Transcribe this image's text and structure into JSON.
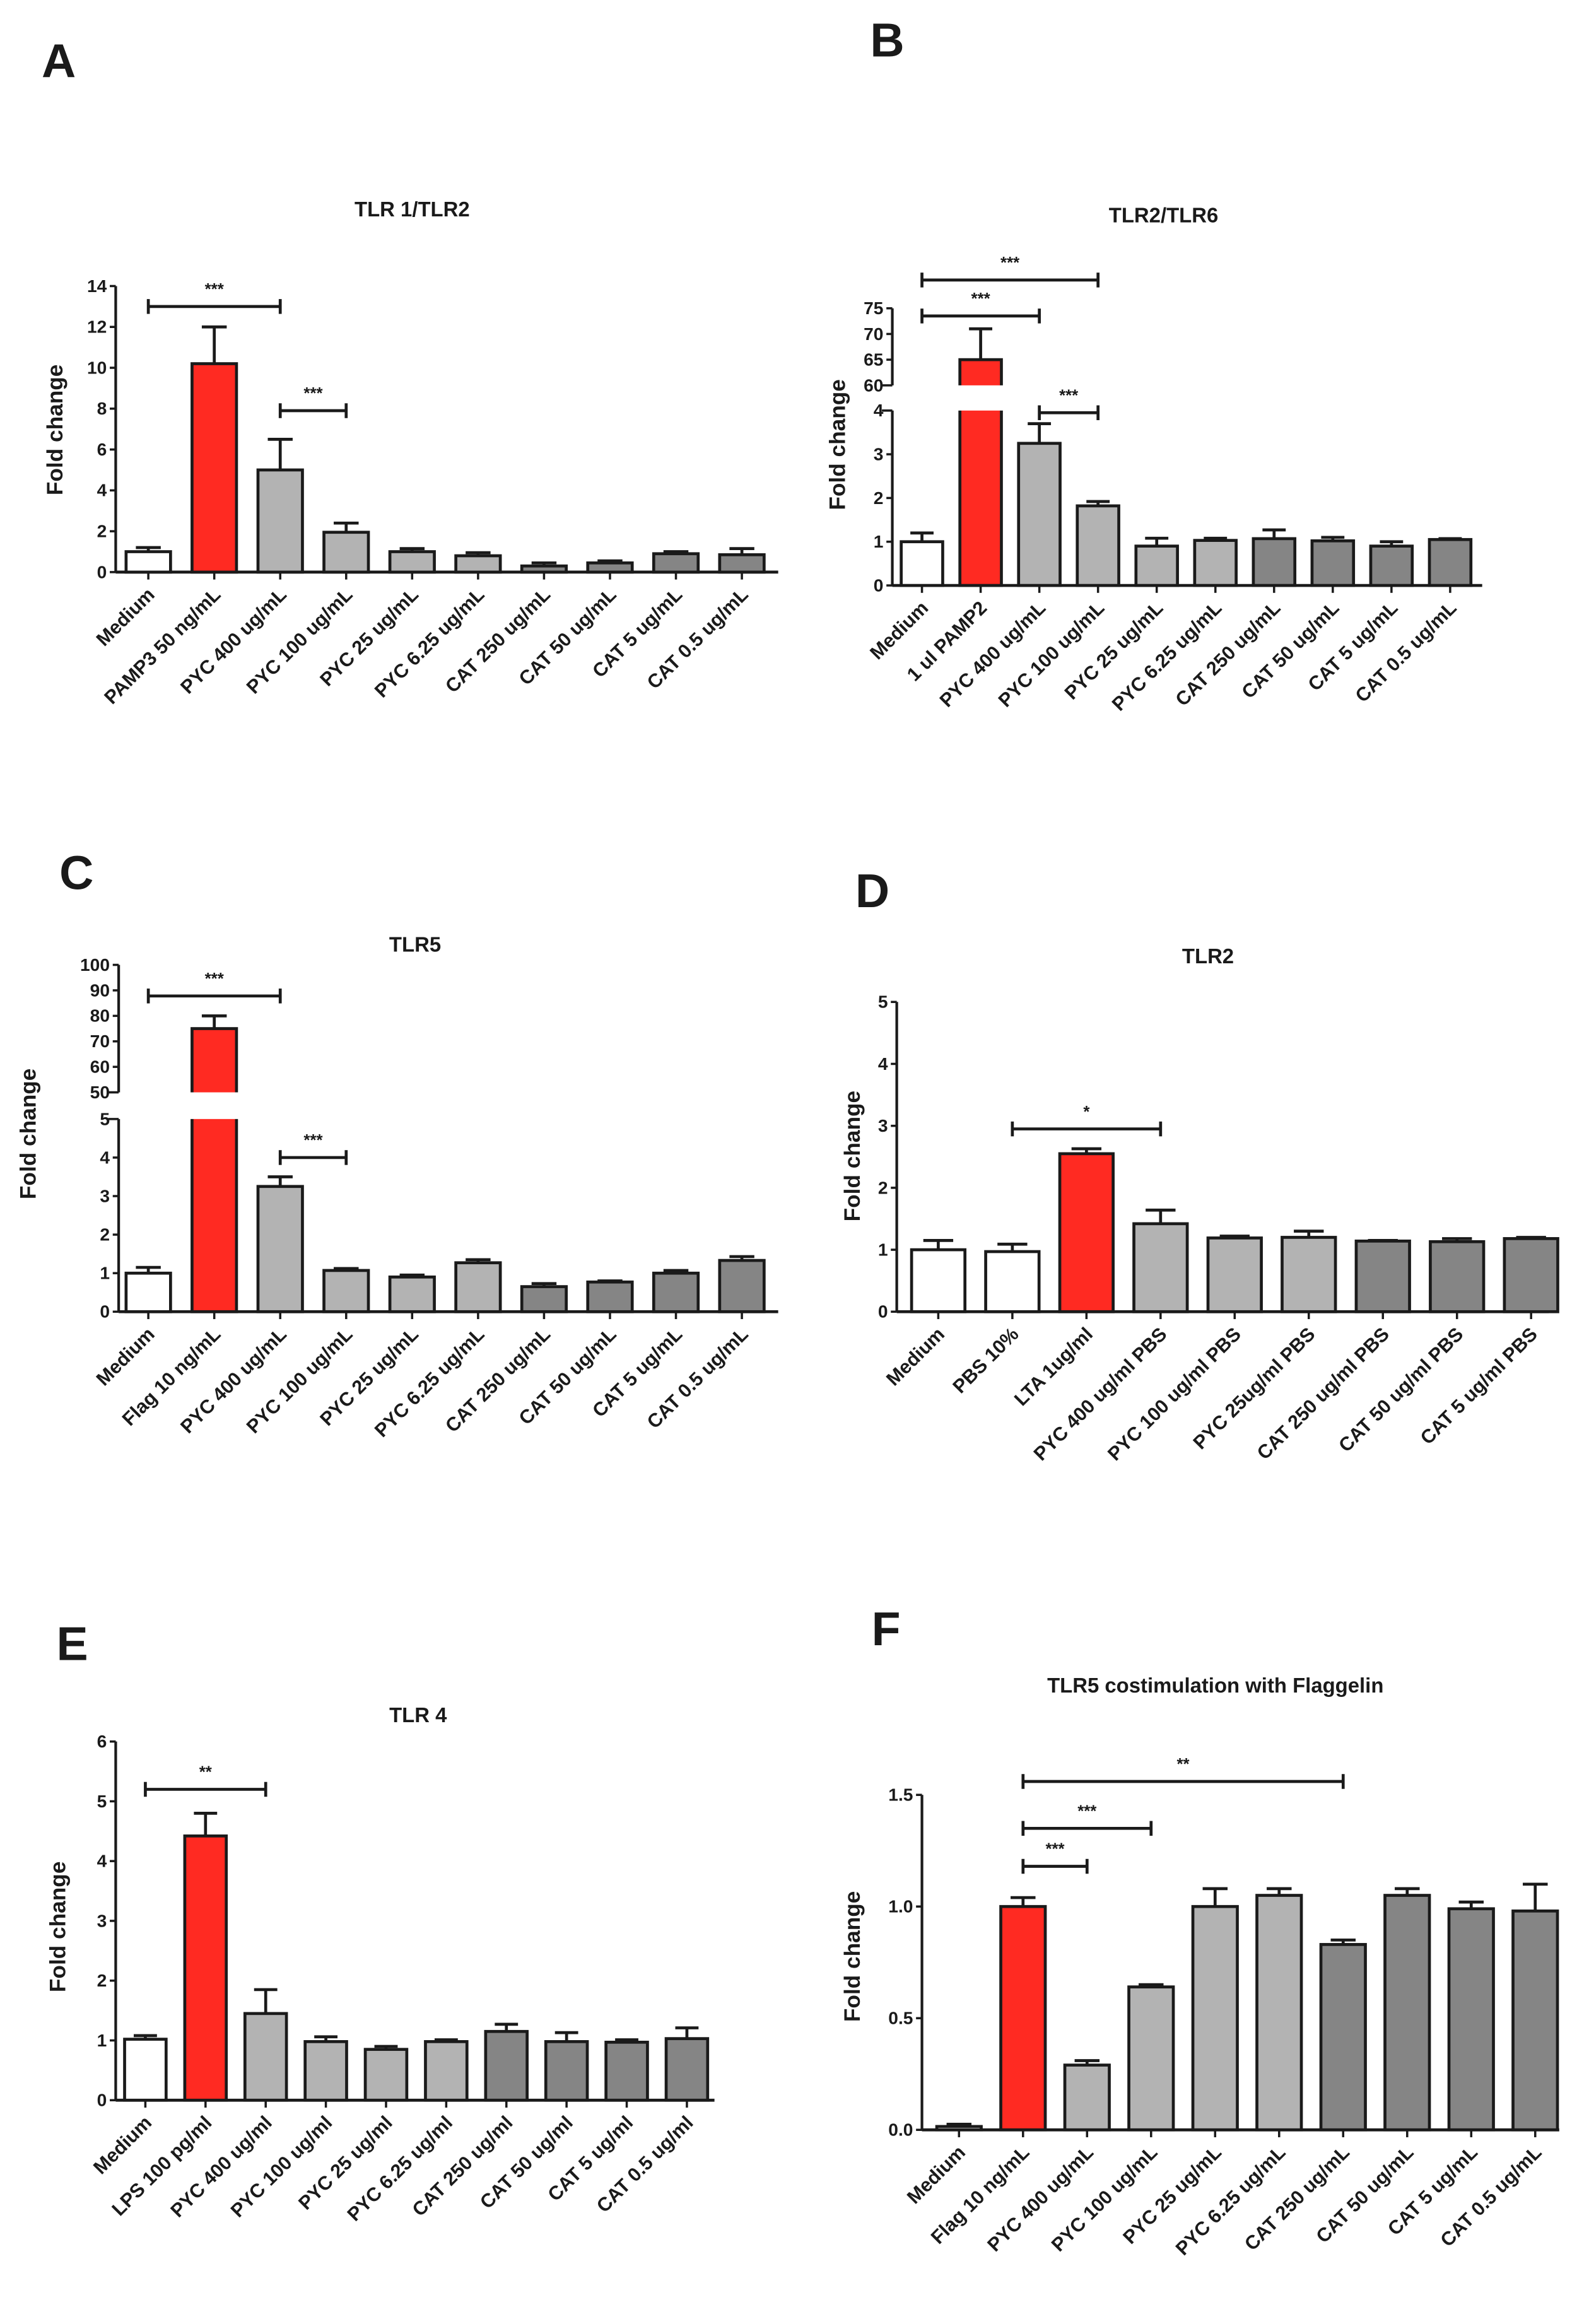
{
  "colors": {
    "control": "#ffffff",
    "positive": "#ff2a22",
    "pyc": "#b3b3b3",
    "cat": "#858585",
    "stroke": "#1a1a1a"
  },
  "chart_data": [
    {
      "panel": "A",
      "type": "bar",
      "title": "TLR 1/TLR2",
      "ylabel": "Fold change",
      "xlabel": "",
      "ylim": [
        0,
        14
      ],
      "tick_segments": [
        [
          "0",
          "2",
          "4",
          "6",
          "8",
          "10",
          "12",
          "14"
        ]
      ],
      "categories": [
        "Medium",
        "PAMP3 50 ng/mL",
        "PYC 400 ug/mL",
        "PYC 100 ug/mL",
        "PYC 25 ug/mL",
        "PYC 6.25 ug/mL",
        "CAT 250 ug/mL",
        "CAT 50 ug/mL",
        "CAT 5 ug/mL",
        "CAT 0.5 ug/mL"
      ],
      "values": [
        1.0,
        10.2,
        5.0,
        1.95,
        1.0,
        0.8,
        0.3,
        0.45,
        0.9,
        0.85
      ],
      "errors": [
        0.2,
        1.8,
        1.5,
        0.45,
        0.15,
        0.15,
        0.15,
        0.1,
        0.1,
        0.3
      ],
      "groups": [
        "control",
        "positive",
        "pyc",
        "pyc",
        "pyc",
        "pyc",
        "cat",
        "cat",
        "cat",
        "cat"
      ],
      "significance": [
        {
          "from": 0,
          "to": 2,
          "y": 13.0,
          "label": "***"
        },
        {
          "from": 2,
          "to": 3,
          "y": 7.9,
          "label": "***"
        }
      ]
    },
    {
      "panel": "B",
      "type": "bar",
      "title": "TLR2/TLR6",
      "ylabel": "Fold change",
      "xlabel": "",
      "ylim": [
        0,
        75
      ],
      "axis_break": [
        4,
        60
      ],
      "tick_segments": [
        [
          "0",
          "1",
          "2",
          "3",
          "4"
        ],
        [
          "60",
          "65",
          "70",
          "75"
        ]
      ],
      "categories": [
        "Medium",
        "1 ul PAMP2",
        "PYC 400 ug/mL",
        "PYC 100 ug/mL",
        "PYC 25 ug/mL",
        "PYC 6.25 ug/mL",
        "CAT 250 ug/mL",
        "CAT 50 ug/mL",
        "CAT 5 ug/mL",
        "CAT 0.5 ug/mL"
      ],
      "values": [
        1.0,
        65,
        3.25,
        1.82,
        0.9,
        1.03,
        1.07,
        1.02,
        0.9,
        1.05
      ],
      "errors": [
        0.2,
        6,
        0.45,
        0.1,
        0.18,
        0.05,
        0.2,
        0.08,
        0.1,
        0.02
      ],
      "groups": [
        "control",
        "positive",
        "pyc",
        "pyc",
        "pyc",
        "pyc",
        "cat",
        "cat",
        "cat",
        "cat"
      ],
      "significance": [
        {
          "from": 0,
          "to": 3,
          "y": 80.5,
          "label": "***"
        },
        {
          "from": 0,
          "to": 2,
          "y": 73.5,
          "label": "***"
        },
        {
          "from": 2,
          "to": 3,
          "y": 3.95,
          "label": "***"
        }
      ]
    },
    {
      "panel": "C",
      "type": "bar",
      "title": "TLR5",
      "ylabel": "Fold change",
      "xlabel": "",
      "ylim": [
        0,
        100
      ],
      "axis_break": [
        5,
        50
      ],
      "tick_segments": [
        [
          "0",
          "1",
          "2",
          "3",
          "4",
          "5"
        ],
        [
          "50",
          "60",
          "70",
          "80",
          "90",
          "100"
        ]
      ],
      "categories": [
        "Medium",
        "Flag 10 ng/mL",
        "PYC 400 ug/mL",
        "PYC 100 ug/mL",
        "PYC 25 ug/mL",
        "PYC 6.25 ug/mL",
        "CAT 250 ug/mL",
        "CAT 50 ug/mL",
        "CAT 5 ug/mL",
        "CAT 0.5 ug/mL"
      ],
      "values": [
        1.0,
        75,
        3.25,
        1.07,
        0.9,
        1.27,
        0.65,
        0.77,
        1.0,
        1.33
      ],
      "errors": [
        0.15,
        5,
        0.25,
        0.05,
        0.05,
        0.08,
        0.08,
        0.03,
        0.07,
        0.1
      ],
      "groups": [
        "control",
        "positive",
        "pyc",
        "pyc",
        "pyc",
        "pyc",
        "cat",
        "cat",
        "cat",
        "cat"
      ],
      "significance": [
        {
          "from": 0,
          "to": 2,
          "y": 87.8,
          "label": "***"
        },
        {
          "from": 2,
          "to": 3,
          "y": 4.0,
          "label": "***"
        }
      ]
    },
    {
      "panel": "D",
      "type": "bar",
      "title": "TLR2",
      "ylabel": "Fold change",
      "xlabel": "",
      "ylim": [
        0,
        5
      ],
      "tick_segments": [
        [
          "0",
          "1",
          "2",
          "3",
          "4",
          "5"
        ]
      ],
      "categories": [
        "Medium",
        "PBS 10%",
        "LTA 1ug/ml",
        "PYC 400 ug/ml PBS",
        "PYC 100 ug/ml PBS",
        "PYC 25ug/ml PBS",
        "CAT 250 ug/ml PBS",
        "CAT 50 ug/ml PBS",
        "CAT 5 ug/ml PBS"
      ],
      "values": [
        1.0,
        0.97,
        2.55,
        1.42,
        1.19,
        1.2,
        1.14,
        1.13,
        1.18
      ],
      "errors": [
        0.15,
        0.12,
        0.08,
        0.22,
        0.03,
        0.1,
        0.01,
        0.05,
        0.02
      ],
      "groups": [
        "control",
        "control",
        "positive",
        "pyc",
        "pyc",
        "pyc",
        "cat",
        "cat",
        "cat"
      ],
      "significance": [
        {
          "from": 1,
          "to": 3,
          "y": 2.95,
          "label": "*"
        }
      ]
    },
    {
      "panel": "E",
      "type": "bar",
      "title": "TLR 4",
      "ylabel": "Fold change",
      "xlabel": "",
      "ylim": [
        0,
        6
      ],
      "tick_segments": [
        [
          "0",
          "1",
          "2",
          "3",
          "4",
          "5",
          "6"
        ]
      ],
      "categories": [
        "Medium",
        "LPS 100 pg/ml",
        "PYC 400 ug/ml",
        "PYC 100 ug/ml",
        "PYC 25 ug/ml",
        "PYC 6.25 ug/ml",
        "CAT 250 ug/ml",
        "CAT 50 ug/ml",
        "CAT 5 ug/ml",
        "CAT 0.5 ug/ml"
      ],
      "values": [
        1.02,
        4.42,
        1.45,
        0.98,
        0.85,
        0.98,
        1.15,
        0.98,
        0.97,
        1.03
      ],
      "errors": [
        0.06,
        0.38,
        0.4,
        0.08,
        0.05,
        0.03,
        0.12,
        0.15,
        0.04,
        0.18
      ],
      "groups": [
        "control",
        "positive",
        "pyc",
        "pyc",
        "pyc",
        "pyc",
        "cat",
        "cat",
        "cat",
        "cat"
      ],
      "significance": [
        {
          "from": 0,
          "to": 2,
          "y": 5.2,
          "label": "**"
        }
      ]
    },
    {
      "panel": "F",
      "type": "bar",
      "title": "TLR5 costimulation with Flaggelin",
      "ylabel": "Fold change",
      "xlabel": "",
      "ylim": [
        0,
        1.5
      ],
      "tick_segments": [
        [
          "0.0",
          "0.5",
          "1.0",
          "1.5"
        ]
      ],
      "categories": [
        "Medium",
        "Flag 10 ng/mL",
        "PYC 400 ug/mL",
        "PYC 100 ug/mL",
        "PYC 25 ug/mL",
        "PYC 6.25 ug/mL",
        "CAT 250 ug/mL",
        "CAT 50 ug/mL",
        "CAT 5 ug/mL",
        "CAT 0.5 ug/mL"
      ],
      "values": [
        0.015,
        1.0,
        0.29,
        0.64,
        1.0,
        1.05,
        0.83,
        1.05,
        0.99,
        0.98
      ],
      "errors": [
        0.01,
        0.04,
        0.02,
        0.01,
        0.08,
        0.03,
        0.02,
        0.03,
        0.03,
        0.12
      ],
      "groups": [
        "control",
        "positive",
        "pyc",
        "pyc",
        "pyc",
        "pyc",
        "cat",
        "cat",
        "cat",
        "cat"
      ],
      "significance": [
        {
          "from": 1,
          "to": 6,
          "y": 1.56,
          "label": "**"
        },
        {
          "from": 1,
          "to": 3,
          "y": 1.35,
          "label": "***"
        },
        {
          "from": 1,
          "to": 2,
          "y": 1.18,
          "label": "***"
        }
      ]
    }
  ]
}
